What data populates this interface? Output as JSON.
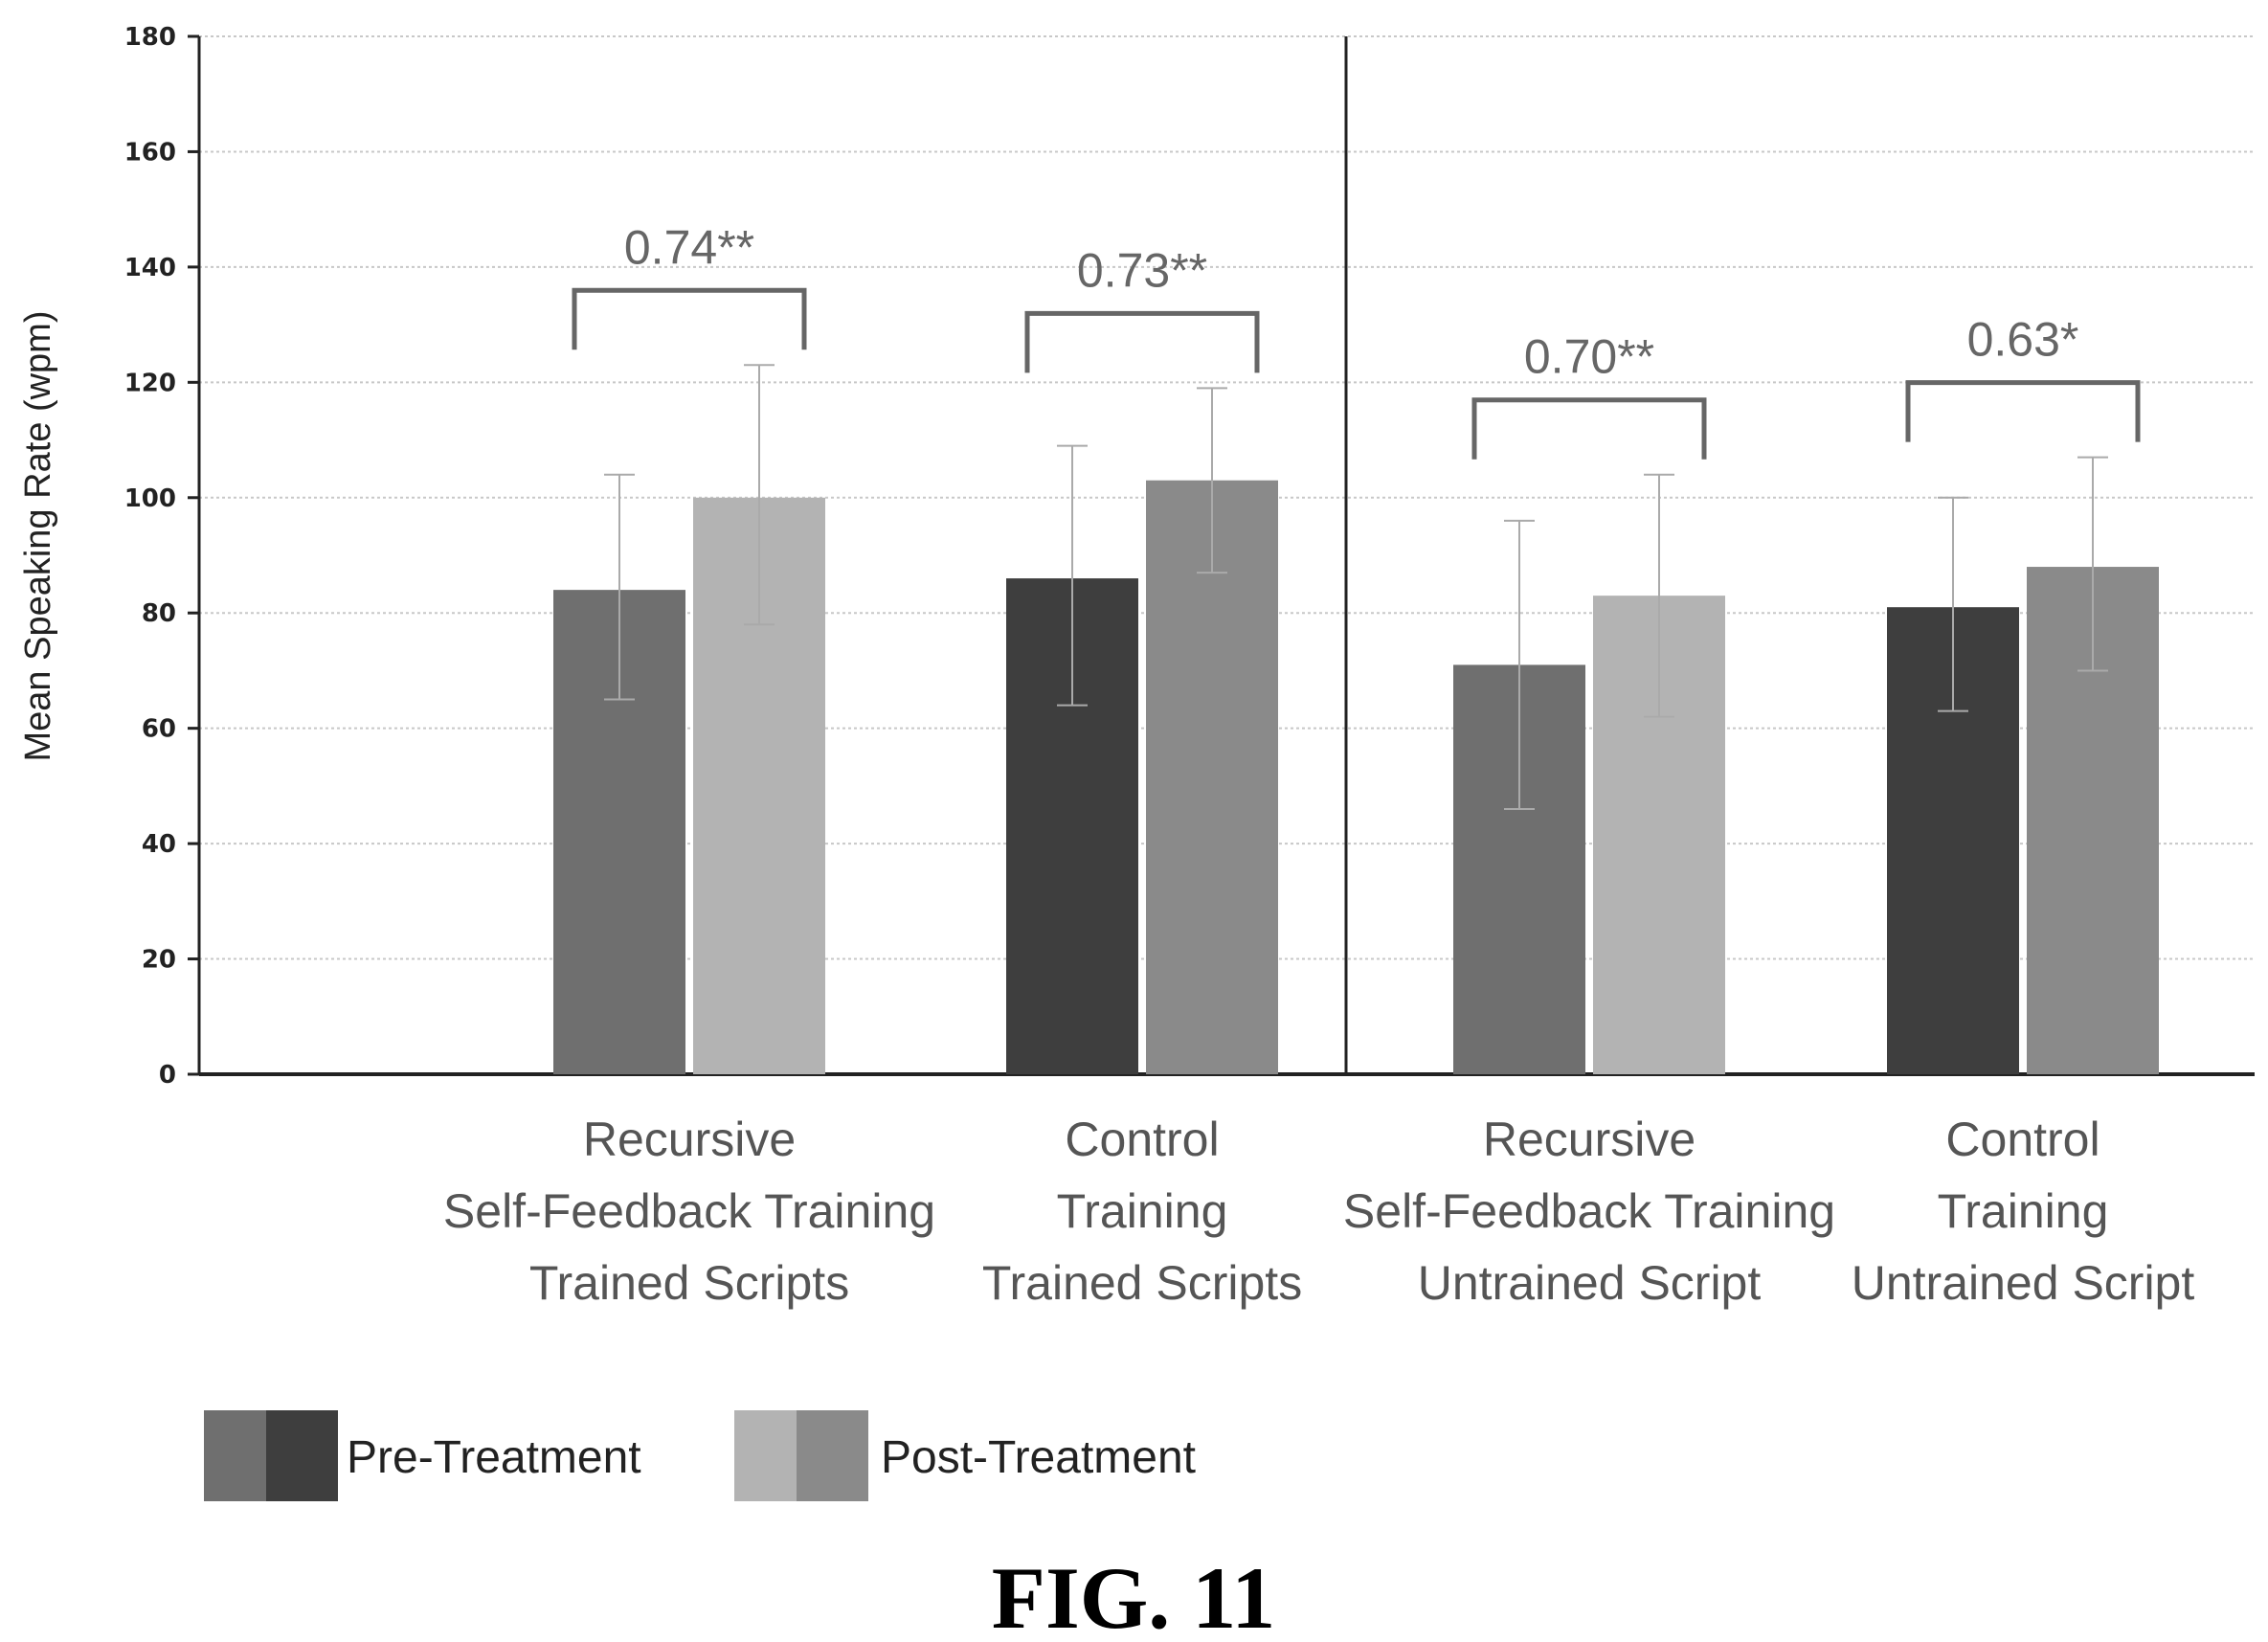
{
  "chart_data": {
    "type": "bar",
    "title": "",
    "ylabel": "Mean Speaking Rate (wpm)",
    "xlabel": "",
    "ylim": [
      0,
      180
    ],
    "yticks": [
      0,
      20,
      40,
      60,
      80,
      100,
      120,
      140,
      160,
      180
    ],
    "grid": true,
    "categories": [
      [
        "Recursive",
        "Self-Feedback Training",
        "Trained Scripts"
      ],
      [
        "Control",
        "Training",
        "Trained Scripts"
      ],
      [
        "Recursive",
        "Self-Feedback Training",
        "Untrained Script"
      ],
      [
        "Control",
        "Training",
        "Untrained Script"
      ]
    ],
    "series": [
      {
        "name": "Pre-Treatment",
        "values": [
          84,
          86,
          71,
          81
        ],
        "error_upper": [
          104,
          109,
          96,
          100
        ],
        "error_lower": [
          65,
          64,
          46,
          63
        ]
      },
      {
        "name": "Post-Treatment",
        "values": [
          100,
          103,
          83,
          88
        ],
        "error_upper": [
          123,
          119,
          104,
          107
        ],
        "error_lower": [
          78,
          87,
          62,
          70
        ]
      }
    ],
    "annotations": [
      "0.74**",
      "0.73**",
      "0.70**",
      "0.63*"
    ],
    "legend_placement": "bottom-left"
  },
  "colors": {
    "pre_bars": [
      "#6f6f6f",
      "#3e3e3e",
      "#6f6f6f",
      "#3e3e3e"
    ],
    "post_bars": [
      "#b3b3b3",
      "#8a8a8a",
      "#b3b3b3",
      "#8a8a8a"
    ],
    "grid": "#c8c8c8",
    "axis": "#222222",
    "bracket": "#666666",
    "error_bar": "#aaaaaa"
  },
  "figure_label": "FIG. 11"
}
